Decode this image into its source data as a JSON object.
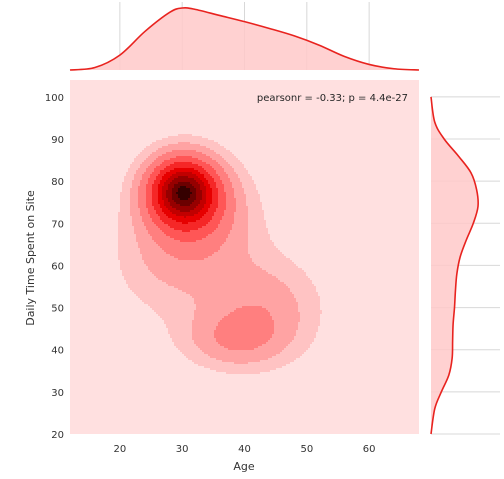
{
  "chart_data": {
    "type": "jointplot-kde",
    "xlabel": "Age",
    "ylabel": "Daily Time Spent on Site",
    "annotation": "pearsonr = -0.33; p = 4.4e-27",
    "xlim": [
      12,
      68
    ],
    "ylim": [
      20,
      104
    ],
    "xticks": [
      20,
      30,
      40,
      50,
      60
    ],
    "yticks": [
      20,
      30,
      40,
      50,
      60,
      70,
      80,
      90,
      100
    ],
    "grid": true,
    "colors": {
      "background": "#ffe0e0",
      "levels": [
        "#ffc3c3",
        "#ffa3a3",
        "#ff7f7f",
        "#ff5656",
        "#f52727",
        "#e60000",
        "#c10000",
        "#960000",
        "#6b0000",
        "#350000"
      ],
      "marginal_fill": "#ffc9c9",
      "marginal_line": "#e8231f",
      "grid": "#d8d8d8"
    },
    "density_components": [
      {
        "x": 30,
        "y": 78,
        "sx": 4.2,
        "sy": 6.0,
        "w": 1.0
      },
      {
        "x": 33,
        "y": 72,
        "sx": 6.5,
        "sy": 9.0,
        "w": 0.35
      },
      {
        "x": 43,
        "y": 50,
        "sx": 7.0,
        "sy": 9.0,
        "w": 0.3
      },
      {
        "x": 38,
        "y": 42,
        "sx": 6.0,
        "sy": 5.0,
        "w": 0.25
      },
      {
        "x": 27,
        "y": 60,
        "sx": 7.0,
        "sy": 10.0,
        "w": 0.18
      }
    ],
    "marginal_x": {
      "x": [
        12,
        16,
        20,
        24,
        28,
        30,
        32,
        36,
        40,
        44,
        48,
        52,
        56,
        60,
        64,
        68
      ],
      "density": [
        0.0,
        0.04,
        0.24,
        0.62,
        0.93,
        1.0,
        0.98,
        0.88,
        0.78,
        0.67,
        0.55,
        0.4,
        0.22,
        0.09,
        0.02,
        0.0
      ]
    },
    "marginal_y": {
      "y": [
        20,
        26,
        30,
        34,
        38,
        42,
        46,
        50,
        54,
        58,
        62,
        66,
        70,
        74,
        78,
        82,
        86,
        90,
        94,
        100
      ],
      "density": [
        0.0,
        0.08,
        0.22,
        0.38,
        0.45,
        0.46,
        0.47,
        0.5,
        0.52,
        0.55,
        0.62,
        0.75,
        0.9,
        1.0,
        0.97,
        0.85,
        0.58,
        0.28,
        0.08,
        0.0
      ]
    }
  }
}
